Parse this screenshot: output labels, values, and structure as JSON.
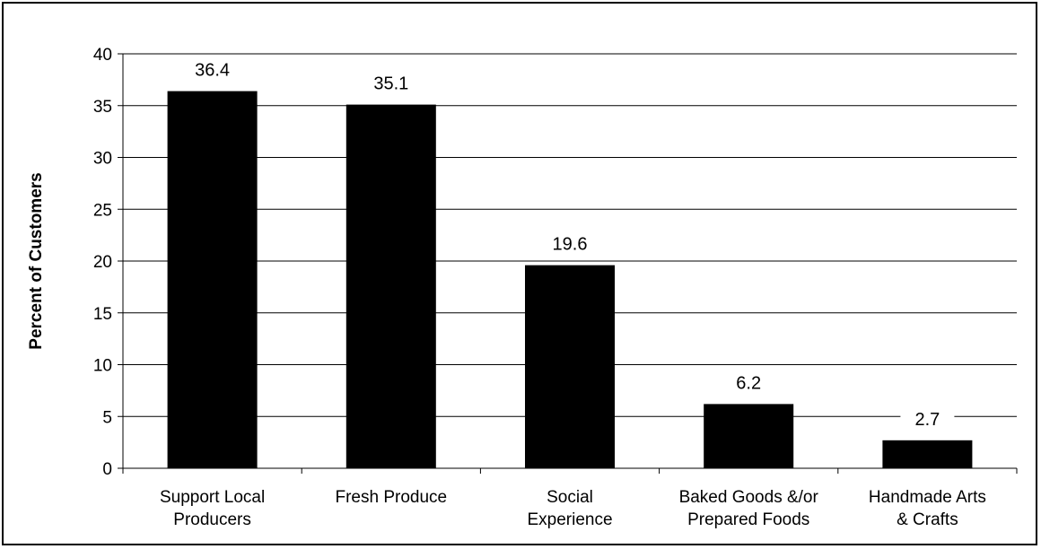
{
  "chart_data": {
    "type": "bar",
    "title": "",
    "xlabel": "",
    "ylabel": "Percent of Customers",
    "ylim": [
      0,
      40
    ],
    "y_ticks": [
      0,
      5,
      10,
      15,
      20,
      25,
      30,
      35,
      40
    ],
    "grid": true,
    "categories": [
      [
        "Support Local",
        "Producers"
      ],
      [
        "Fresh Produce"
      ],
      [
        "Social",
        "Experience"
      ],
      [
        "Baked Goods &/or",
        "Prepared Foods"
      ],
      [
        "Handmade Arts",
        "& Crafts"
      ]
    ],
    "values": [
      36.4,
      35.1,
      19.6,
      6.2,
      2.7
    ],
    "data_labels": [
      "36.4",
      "35.1",
      "19.6",
      "6.2",
      "2.7"
    ],
    "colors": {
      "bar": "#000000",
      "grid": "#000000",
      "background": "#ffffff"
    }
  }
}
